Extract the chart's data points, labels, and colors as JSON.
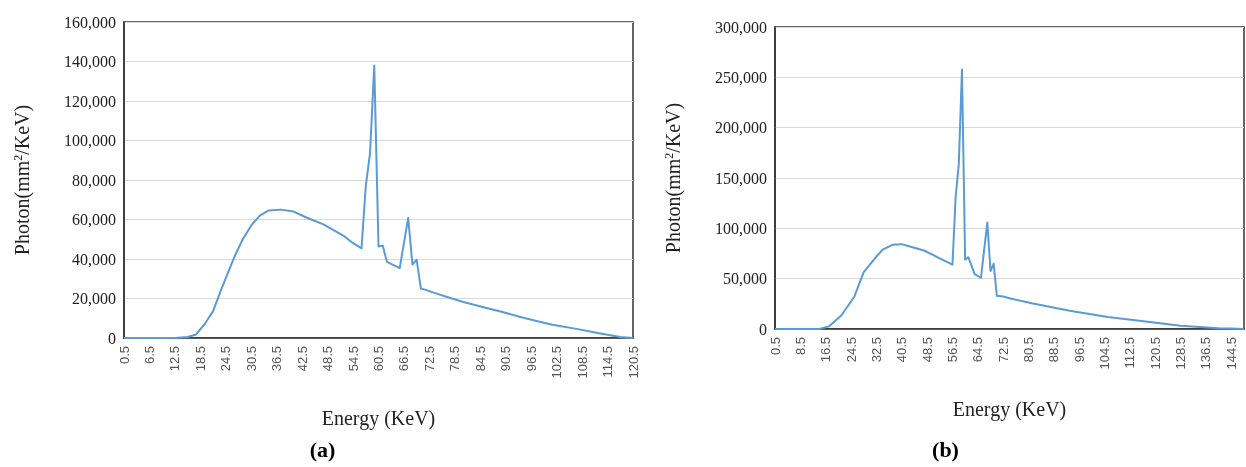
{
  "chart_data": [
    {
      "type": "line",
      "title": "(a)",
      "xlabel": "Energy (KeV)",
      "ylabel": "Photon(mm$^{2}$/KeV)",
      "grid": "y",
      "marker": "none",
      "line_style": "solid",
      "xlim": [
        0.5,
        120.5
      ],
      "xticks": [
        0.5,
        6.5,
        12.5,
        18.5,
        24.5,
        30.5,
        36.5,
        42.5,
        48.5,
        54.5,
        60.5,
        66.5,
        72.5,
        78.5,
        84.5,
        90.5,
        96.5,
        102.5,
        108.5,
        114.5,
        120.5
      ],
      "ylim": [
        0,
        160000
      ],
      "yticks": [
        {
          "value": 0,
          "label": "0"
        },
        {
          "value": 20000,
          "label": "20,000"
        },
        {
          "value": 40000,
          "label": "40,000"
        },
        {
          "value": 60000,
          "label": "60,000"
        },
        {
          "value": 80000,
          "label": "80,000"
        },
        {
          "value": 100000,
          "label": "100,000"
        },
        {
          "value": 120000,
          "label": "120,000"
        },
        {
          "value": 140000,
          "label": "140,000"
        },
        {
          "value": 160000,
          "label": "160,000"
        }
      ],
      "series": [
        {
          "color": "#5b9bd5",
          "x": [
            0.5,
            12.5,
            15.5,
            17.5,
            19.5,
            21.5,
            23.5,
            26.5,
            28.5,
            30.5,
            32.5,
            34.5,
            37.5,
            40.5,
            43.5,
            47.5,
            52.5,
            54.5,
            56.5,
            57.5,
            58.5,
            59.5,
            60.5,
            61.5,
            62.5,
            65.5,
            67.5,
            68.5,
            69.5,
            70.5,
            71.5,
            73.5,
            76.5,
            80.5,
            85.5,
            89.5,
            93.5,
            97.5,
            101.5,
            107.5,
            112.5,
            117.5,
            120.5
          ],
          "values": [
            0,
            0,
            500,
            1800,
            7000,
            13600,
            25000,
            41000,
            50000,
            57000,
            62000,
            64500,
            65000,
            64000,
            61000,
            57500,
            51400,
            48000,
            45400,
            77000,
            93500,
            138000,
            46300,
            46700,
            38500,
            35400,
            60800,
            37200,
            39600,
            25000,
            24500,
            23000,
            20900,
            18200,
            15400,
            13300,
            10900,
            8700,
            6700,
            4500,
            2400,
            500,
            0
          ]
        }
      ]
    },
    {
      "type": "line",
      "title": "(b)",
      "xlabel": "Energy (KeV)",
      "ylabel": "Photon(mm$^{2}$/KeV)",
      "grid": "y",
      "marker": "none",
      "line_style": "solid",
      "xlim": [
        0.5,
        148.5
      ],
      "xticks": [
        0.5,
        8.5,
        16.5,
        24.5,
        32.5,
        40.5,
        48.5,
        56.5,
        64.5,
        72.5,
        80.5,
        88.5,
        96.5,
        104.5,
        112.5,
        120.5,
        128.5,
        136.5,
        144.5
      ],
      "ylim": [
        0,
        300000
      ],
      "yticks": [
        {
          "value": 0,
          "label": "0"
        },
        {
          "value": 50000,
          "label": "50,000"
        },
        {
          "value": 100000,
          "label": "100,000"
        },
        {
          "value": 150000,
          "label": "150,000"
        },
        {
          "value": 200000,
          "label": "200,000"
        },
        {
          "value": 250000,
          "label": "250,000"
        },
        {
          "value": 300000,
          "label": "300,000"
        }
      ],
      "series": [
        {
          "color": "#5b9bd5",
          "x": [
            0.5,
            14.5,
            17.5,
            21.5,
            25.5,
            28.5,
            32.5,
            34.5,
            37.5,
            40.5,
            42.5,
            47.5,
            52.5,
            56.5,
            57.5,
            58.5,
            59.5,
            60.5,
            61.5,
            63.5,
            65.5,
            67.5,
            68.5,
            69.5,
            70.5,
            72.5,
            74.5,
            81.5,
            93.5,
            105.5,
            117.5,
            128.5,
            140.5,
            144.5,
            148.5
          ],
          "values": [
            0,
            0,
            2600,
            13700,
            32000,
            56500,
            72000,
            78800,
            83600,
            84300,
            82500,
            78000,
            70200,
            63900,
            130800,
            164000,
            257800,
            68700,
            71300,
            54600,
            50900,
            105900,
            57600,
            65000,
            33000,
            32300,
            30500,
            25600,
            18200,
            11900,
            7400,
            3300,
            700,
            500,
            0
          ]
        }
      ]
    }
  ]
}
